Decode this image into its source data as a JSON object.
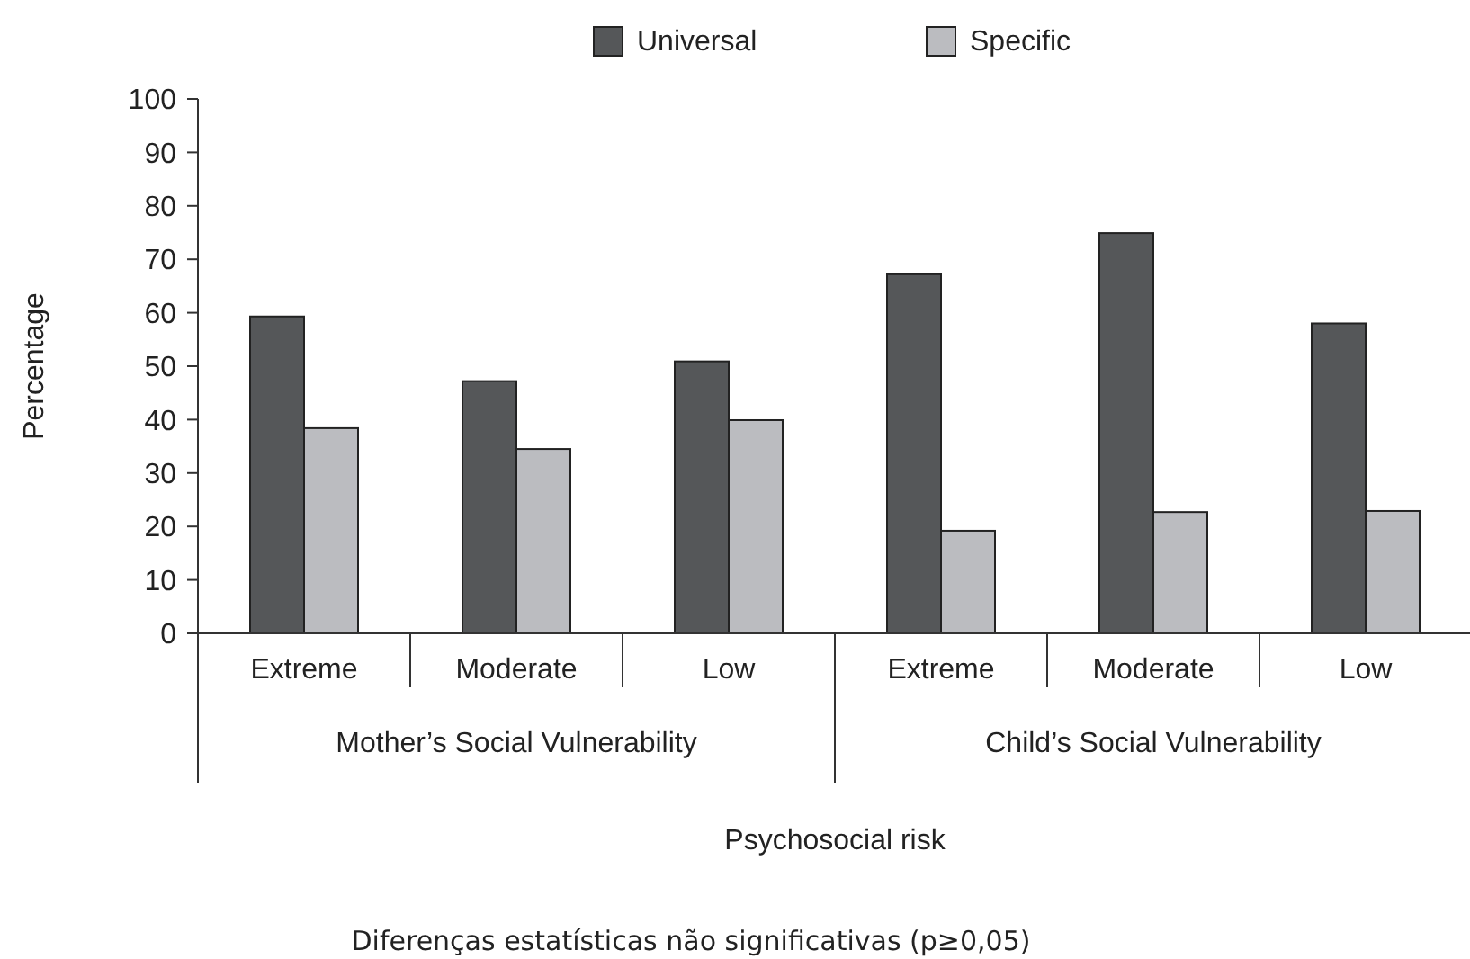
{
  "chart_data": {
    "type": "bar",
    "xlabel": "Psychosocial risk",
    "ylabel": "Percentage",
    "categories": [
      "Extreme",
      "Moderate",
      "Low",
      "Extreme",
      "Moderate",
      "Low"
    ],
    "series": [
      {
        "name": "Universal",
        "color": "#555759",
        "values": [
          59.3,
          47.2,
          50.9,
          67.2,
          74.9,
          58.0
        ]
      },
      {
        "name": "Specific",
        "color": "#bbbcc0",
        "values": [
          38.4,
          34.5,
          39.9,
          19.2,
          22.7,
          22.9
        ]
      }
    ],
    "ylim": [
      0,
      100
    ],
    "yticks": [
      0,
      10,
      20,
      30,
      40,
      50,
      60,
      70,
      80,
      90,
      100
    ],
    "grid": false,
    "legend": "top",
    "annotations": [
      "Mother’s Social Vulnerability",
      "Child’s Social Vulnerability",
      "Diferenças estatísticas não significativas (p≥0,05)"
    ]
  }
}
